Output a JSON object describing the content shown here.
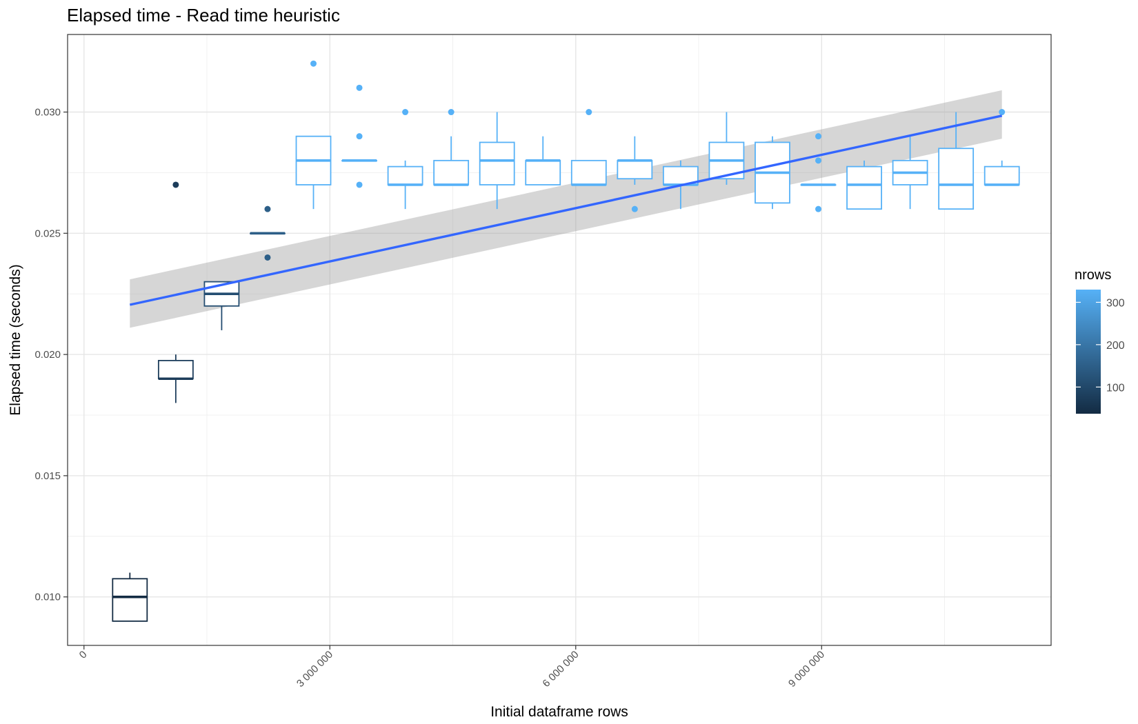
{
  "chart_data": {
    "type": "boxplot",
    "title": "Elapsed time - Read time heuristic",
    "xlabel": "Initial dataframe rows",
    "ylabel": "Elapsed time (seconds)",
    "xlim": [
      -200000,
      11800000
    ],
    "ylim": [
      0.008,
      0.0332
    ],
    "x_ticks": [
      {
        "value": 0,
        "label": "0"
      },
      {
        "value": 3000000,
        "label": "3 000 000"
      },
      {
        "value": 6000000,
        "label": "6 000 000"
      },
      {
        "value": 9000000,
        "label": "9 000 000"
      }
    ],
    "y_ticks": [
      {
        "value": 0.01,
        "label": "0.010"
      },
      {
        "value": 0.015,
        "label": "0.015"
      },
      {
        "value": 0.02,
        "label": "0.020"
      },
      {
        "value": 0.025,
        "label": "0.025"
      },
      {
        "value": 0.03,
        "label": "0.030"
      }
    ],
    "grid": true,
    "legend": {
      "title": "nrows",
      "placement": "right",
      "range": [
        37,
        330
      ],
      "ticks": [
        {
          "value": 100,
          "label": "100"
        },
        {
          "value": 200,
          "label": "200"
        },
        {
          "value": 300,
          "label": "300"
        }
      ],
      "colors": [
        "#132b43",
        "#56b1f7"
      ]
    },
    "boxes": [
      {
        "x": 560000,
        "nrows": 37,
        "min": 0.009,
        "q1": 0.009,
        "median": 0.01,
        "q3": 0.01075,
        "max": 0.011,
        "outliers": []
      },
      {
        "x": 1120000,
        "nrows": 75,
        "min": 0.018,
        "q1": 0.019,
        "median": 0.019,
        "q3": 0.01975,
        "max": 0.02,
        "outliers": [
          0.027
        ]
      },
      {
        "x": 1680000,
        "nrows": 112,
        "min": 0.021,
        "q1": 0.022,
        "median": 0.0225,
        "q3": 0.023,
        "max": 0.023,
        "outliers": []
      },
      {
        "x": 2240000,
        "nrows": 150,
        "min": 0.025,
        "q1": 0.025,
        "median": 0.025,
        "q3": 0.025,
        "max": 0.025,
        "outliers": [
          0.026,
          0.024
        ]
      },
      {
        "x": 2800000,
        "nrows": 330,
        "min": 0.026,
        "q1": 0.027,
        "median": 0.028,
        "q3": 0.029,
        "max": 0.029,
        "outliers": [
          0.032
        ]
      },
      {
        "x": 3360000,
        "nrows": 330,
        "min": 0.028,
        "q1": 0.028,
        "median": 0.028,
        "q3": 0.028,
        "max": 0.028,
        "outliers": [
          0.031,
          0.029,
          0.027
        ]
      },
      {
        "x": 3920000,
        "nrows": 330,
        "min": 0.026,
        "q1": 0.027,
        "median": 0.027,
        "q3": 0.02775,
        "max": 0.028,
        "outliers": [
          0.03
        ]
      },
      {
        "x": 4480000,
        "nrows": 330,
        "min": 0.027,
        "q1": 0.027,
        "median": 0.027,
        "q3": 0.028,
        "max": 0.029,
        "outliers": [
          0.03
        ]
      },
      {
        "x": 5040000,
        "nrows": 330,
        "min": 0.026,
        "q1": 0.027,
        "median": 0.028,
        "q3": 0.02875,
        "max": 0.03,
        "outliers": []
      },
      {
        "x": 5600000,
        "nrows": 330,
        "min": 0.027,
        "q1": 0.027,
        "median": 0.028,
        "q3": 0.028,
        "max": 0.029,
        "outliers": []
      },
      {
        "x": 6160000,
        "nrows": 330,
        "min": 0.027,
        "q1": 0.027,
        "median": 0.027,
        "q3": 0.028,
        "max": 0.028,
        "outliers": [
          0.03
        ]
      },
      {
        "x": 6720000,
        "nrows": 330,
        "min": 0.027,
        "q1": 0.02725,
        "median": 0.028,
        "q3": 0.028,
        "max": 0.029,
        "outliers": [
          0.026
        ]
      },
      {
        "x": 7280000,
        "nrows": 330,
        "min": 0.026,
        "q1": 0.027,
        "median": 0.027,
        "q3": 0.02775,
        "max": 0.028,
        "outliers": []
      },
      {
        "x": 7840000,
        "nrows": 330,
        "min": 0.027,
        "q1": 0.02725,
        "median": 0.028,
        "q3": 0.02875,
        "max": 0.03,
        "outliers": []
      },
      {
        "x": 8400000,
        "nrows": 330,
        "min": 0.026,
        "q1": 0.02625,
        "median": 0.0275,
        "q3": 0.02875,
        "max": 0.029,
        "outliers": []
      },
      {
        "x": 8960000,
        "nrows": 330,
        "min": 0.027,
        "q1": 0.027,
        "median": 0.027,
        "q3": 0.027,
        "max": 0.027,
        "outliers": [
          0.029,
          0.028,
          0.026
        ]
      },
      {
        "x": 9520000,
        "nrows": 330,
        "min": 0.026,
        "q1": 0.026,
        "median": 0.027,
        "q3": 0.02775,
        "max": 0.028,
        "outliers": []
      },
      {
        "x": 10080000,
        "nrows": 330,
        "min": 0.026,
        "q1": 0.027,
        "median": 0.0275,
        "q3": 0.028,
        "max": 0.029,
        "outliers": []
      },
      {
        "x": 10640000,
        "nrows": 330,
        "min": 0.026,
        "q1": 0.026,
        "median": 0.027,
        "q3": 0.0285,
        "max": 0.03,
        "outliers": []
      },
      {
        "x": 11200000,
        "nrows": 330,
        "min": 0.027,
        "q1": 0.027,
        "median": 0.027,
        "q3": 0.02775,
        "max": 0.028,
        "outliers": [
          0.03
        ]
      }
    ],
    "trend": {
      "method": "linear",
      "color": "#3366ff",
      "x": [
        560000,
        11200000
      ],
      "y": [
        0.02205,
        0.02985
      ],
      "ci_lower": [
        0.0211,
        0.0289
      ],
      "ci_upper": [
        0.0231,
        0.0309
      ]
    }
  }
}
